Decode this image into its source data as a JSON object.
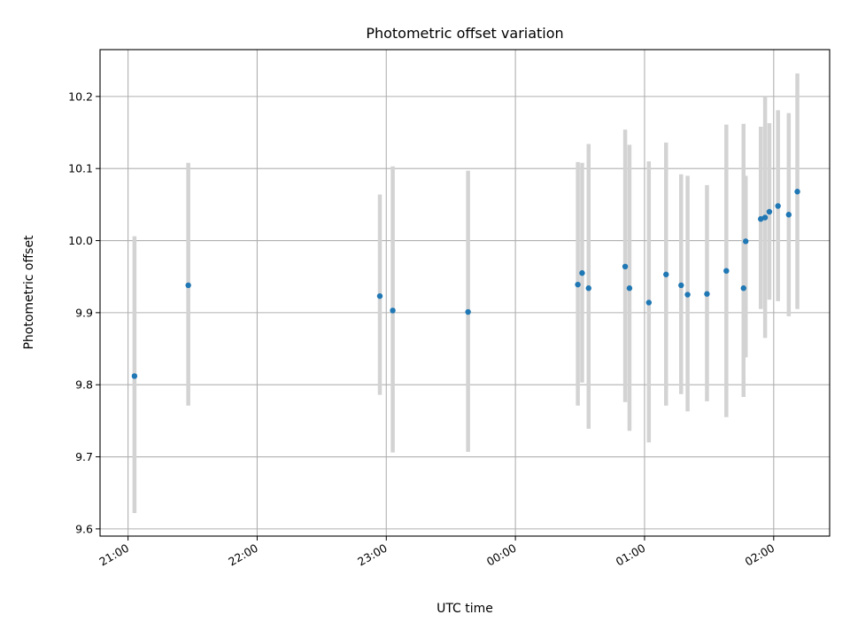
{
  "chart_data": {
    "type": "scatter",
    "title": "Photometric offset variation",
    "xlabel": "UTC time",
    "ylabel": "Photometric offset",
    "x_is_time": true,
    "x_reference_day": "2000-01-01",
    "xlim": [
      "20:47",
      "02:26 +1d"
    ],
    "ylim": [
      9.59,
      10.265
    ],
    "x_ticks": [
      "21:00",
      "22:00",
      "23:00",
      "00:00",
      "01:00",
      "02:00"
    ],
    "y_ticks": [
      "9.6",
      "9.7",
      "9.8",
      "9.9",
      "10.0",
      "10.1",
      "10.2"
    ],
    "grid": true,
    "colors": {
      "points": "#1f77b4",
      "errorbars": "#d3d3d3"
    },
    "series": [
      {
        "x": [
          "21:03",
          "21:28",
          "22:57",
          "23:03",
          "23:38",
          "00:29",
          "00:31",
          "00:34",
          "00:51",
          "00:53",
          "01:02",
          "01:10",
          "01:17",
          "01:20",
          "01:29",
          "01:38",
          "01:46",
          "01:47",
          "01:54",
          "01:56",
          "01:58",
          "02:02",
          "02:07",
          "02:11"
        ],
        "y": [
          9.812,
          9.938,
          9.923,
          9.903,
          9.901,
          9.939,
          9.955,
          9.934,
          9.964,
          9.934,
          9.914,
          9.953,
          9.938,
          9.925,
          9.926,
          9.958,
          9.934,
          9.999,
          10.03,
          10.032,
          10.04,
          10.048,
          10.036,
          10.068
        ],
        "yerr_low": [
          9.622,
          9.771,
          9.786,
          9.706,
          9.707,
          9.771,
          9.803,
          9.739,
          9.776,
          9.736,
          9.72,
          9.771,
          9.787,
          9.763,
          9.777,
          9.755,
          9.783,
          9.838,
          9.905,
          9.865,
          9.918,
          9.916,
          9.895,
          9.905
        ],
        "yerr_high": [
          10.006,
          10.108,
          10.064,
          10.103,
          10.097,
          10.109,
          10.108,
          10.134,
          10.154,
          10.133,
          10.11,
          10.136,
          10.092,
          10.09,
          10.077,
          10.161,
          10.162,
          10.09,
          10.158,
          10.2,
          10.163,
          10.181,
          10.177,
          10.232
        ]
      }
    ]
  }
}
